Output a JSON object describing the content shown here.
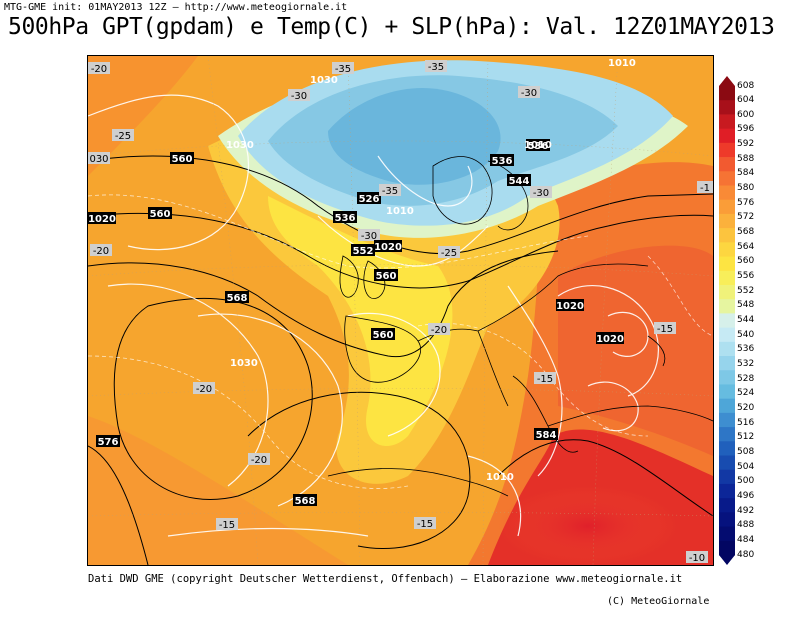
{
  "header": {
    "init_line": "MTG-GME init: 01MAY2013 12Z — http://www.meteogiornale.it",
    "title": "500hPa GPT(gpdam) e Temp(C) + SLP(hPa): Val. 12Z01MAY2013"
  },
  "footer": {
    "credits": "Dati DWD GME (copyright Deutscher Wetterdienst, Offenbach) — Elaborazione www.meteogiornale.it",
    "copyright": "(C) MeteoGiornale"
  },
  "colorbar": {
    "labels": [
      "608",
      "604",
      "600",
      "596",
      "592",
      "588",
      "584",
      "580",
      "576",
      "572",
      "568",
      "564",
      "560",
      "556",
      "552",
      "548",
      "544",
      "540",
      "536",
      "532",
      "528",
      "524",
      "520",
      "516",
      "512",
      "508",
      "504",
      "500",
      "496",
      "492",
      "488",
      "484",
      "480"
    ],
    "colors": [
      "#8b0a12",
      "#a8101a",
      "#c81a20",
      "#e01e26",
      "#ee3a2a",
      "#f25a30",
      "#f67334",
      "#f98a36",
      "#fa9d38",
      "#fbb13c",
      "#fcc43e",
      "#fdd640",
      "#fde442",
      "#f8ee5a",
      "#f0f27a",
      "#e6f5a0",
      "#d6f0ea",
      "#c6eaf4",
      "#aee0f0",
      "#96d4ec",
      "#7ec8e6",
      "#66bce0",
      "#4ea6d8",
      "#3e8ed0",
      "#2e76c6",
      "#2060bc",
      "#184cb0",
      "#1238a4",
      "#0c2698",
      "#081a8a",
      "#06127e",
      "#040c70",
      "#020662"
    ]
  },
  "map": {
    "geopotential_labels": [
      "560",
      "560",
      "536",
      "526",
      "536",
      "552",
      "560",
      "568",
      "560",
      "576",
      "568",
      "544",
      "536",
      "584"
    ],
    "temperature_labels": [
      "-20",
      "-25",
      "030",
      "-20",
      "-30",
      "-35",
      "-35",
      "-30",
      "-35",
      "-30",
      "-30",
      "-25",
      "-20",
      "-20",
      "-15",
      "-15",
      "-15",
      "-20",
      "-15",
      "-10",
      "-1"
    ],
    "slp_labels": [
      "1030",
      "1030",
      "1030",
      "1010",
      "1010",
      "1010",
      "1020",
      "1020",
      "1020",
      "1020",
      "1030",
      "1010"
    ]
  }
}
